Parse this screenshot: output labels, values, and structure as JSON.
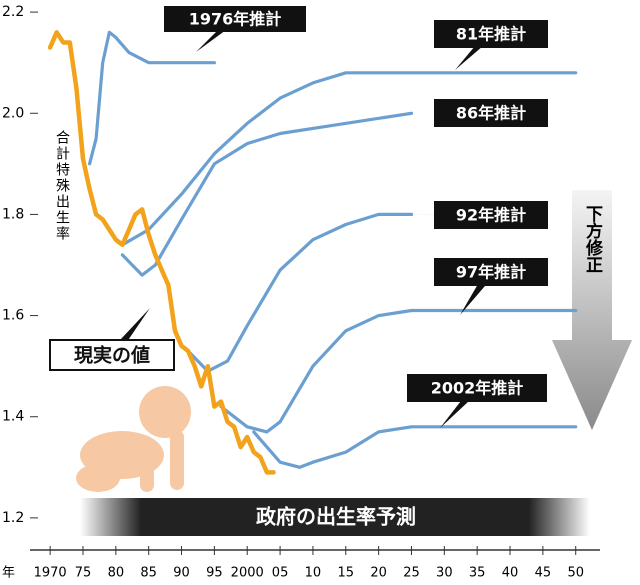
{
  "chart_data": {
    "type": "line",
    "y_label": "合計特殊出生率",
    "x_unit": "年",
    "annotations": {
      "arrow": "下方修正",
      "banner": "政府の出生率予測"
    },
    "xlim": [
      1968,
      2054
    ],
    "ylim": [
      1.18,
      2.22
    ],
    "xticks": [
      {
        "value": 1970,
        "label": "1970"
      },
      {
        "value": 1975,
        "label": "75"
      },
      {
        "value": 1980,
        "label": "80"
      },
      {
        "value": 1985,
        "label": "85"
      },
      {
        "value": 1990,
        "label": "90"
      },
      {
        "value": 1995,
        "label": "95"
      },
      {
        "value": 2000,
        "label": "2000"
      },
      {
        "value": 2005,
        "label": "05"
      },
      {
        "value": 2010,
        "label": "10"
      },
      {
        "value": 2015,
        "label": "15"
      },
      {
        "value": 2020,
        "label": "20"
      },
      {
        "value": 2025,
        "label": "25"
      },
      {
        "value": 2030,
        "label": "30"
      },
      {
        "value": 2035,
        "label": "35"
      },
      {
        "value": 2040,
        "label": "40"
      },
      {
        "value": 2045,
        "label": "45"
      },
      {
        "value": 2050,
        "label": "50"
      }
    ],
    "yticks": [
      1.2,
      1.4,
      1.6,
      1.8,
      {
        "value": 2,
        "label": "2.0"
      },
      2.2
    ],
    "series": [
      {
        "name": "現実の値",
        "color": "#f2a31b",
        "x": [
          1970,
          1971,
          1972,
          1973,
          1974,
          1975,
          1976,
          1977,
          1978,
          1979,
          1980,
          1981,
          1982,
          1983,
          1984,
          1985,
          1986,
          1987,
          1988,
          1989,
          1990,
          1991,
          1992,
          1993,
          1994,
          1995,
          1996,
          1997,
          1998,
          1999,
          2000,
          2001,
          2002,
          2003,
          2004
        ],
        "values": [
          2.13,
          2.16,
          2.14,
          2.14,
          2.05,
          1.91,
          1.85,
          1.8,
          1.79,
          1.77,
          1.75,
          1.74,
          1.77,
          1.8,
          1.81,
          1.76,
          1.72,
          1.69,
          1.66,
          1.57,
          1.54,
          1.53,
          1.5,
          1.46,
          1.5,
          1.42,
          1.43,
          1.39,
          1.38,
          1.34,
          1.36,
          1.33,
          1.32,
          1.29,
          1.29
        ]
      },
      {
        "name": "1976年推計",
        "color": "#6b9fd1",
        "x": [
          1976,
          1977,
          1978,
          1979,
          1980,
          1982,
          1985,
          1990,
          1995
        ],
        "values": [
          1.9,
          1.95,
          2.1,
          2.16,
          2.15,
          2.12,
          2.1,
          2.1,
          2.1
        ]
      },
      {
        "name": "81年推計",
        "color": "#6b9fd1",
        "x": [
          1981,
          1985,
          1990,
          1995,
          2000,
          2005,
          2010,
          2015,
          2025,
          2050
        ],
        "values": [
          1.74,
          1.77,
          1.84,
          1.92,
          1.98,
          2.03,
          2.06,
          2.08,
          2.08,
          2.08
        ]
      },
      {
        "name": "86年推計",
        "color": "#6b9fd1",
        "x": [
          1981,
          1984,
          1986,
          1990,
          1995,
          2000,
          2005,
          2010,
          2025
        ],
        "values": [
          1.72,
          1.68,
          1.7,
          1.79,
          1.9,
          1.94,
          1.96,
          1.97,
          2.0
        ]
      },
      {
        "name": "92年推計",
        "color": "#6b9fd1",
        "x": [
          1991,
          1994,
          1997,
          2000,
          2005,
          2010,
          2015,
          2020,
          2025
        ],
        "values": [
          1.53,
          1.49,
          1.51,
          1.58,
          1.69,
          1.75,
          1.78,
          1.8,
          1.8
        ]
      },
      {
        "name": "97年推計",
        "color": "#6b9fd1",
        "x": [
          1996,
          2000,
          2003,
          2005,
          2010,
          2015,
          2020,
          2025,
          2050
        ],
        "values": [
          1.42,
          1.38,
          1.37,
          1.39,
          1.5,
          1.57,
          1.6,
          1.61,
          1.61
        ]
      },
      {
        "name": "2002年推計",
        "color": "#6b9fd1",
        "x": [
          2001,
          2005,
          2008,
          2010,
          2015,
          2020,
          2025,
          2050
        ],
        "values": [
          1.37,
          1.31,
          1.3,
          1.31,
          1.33,
          1.37,
          1.38,
          1.38
        ]
      }
    ]
  }
}
